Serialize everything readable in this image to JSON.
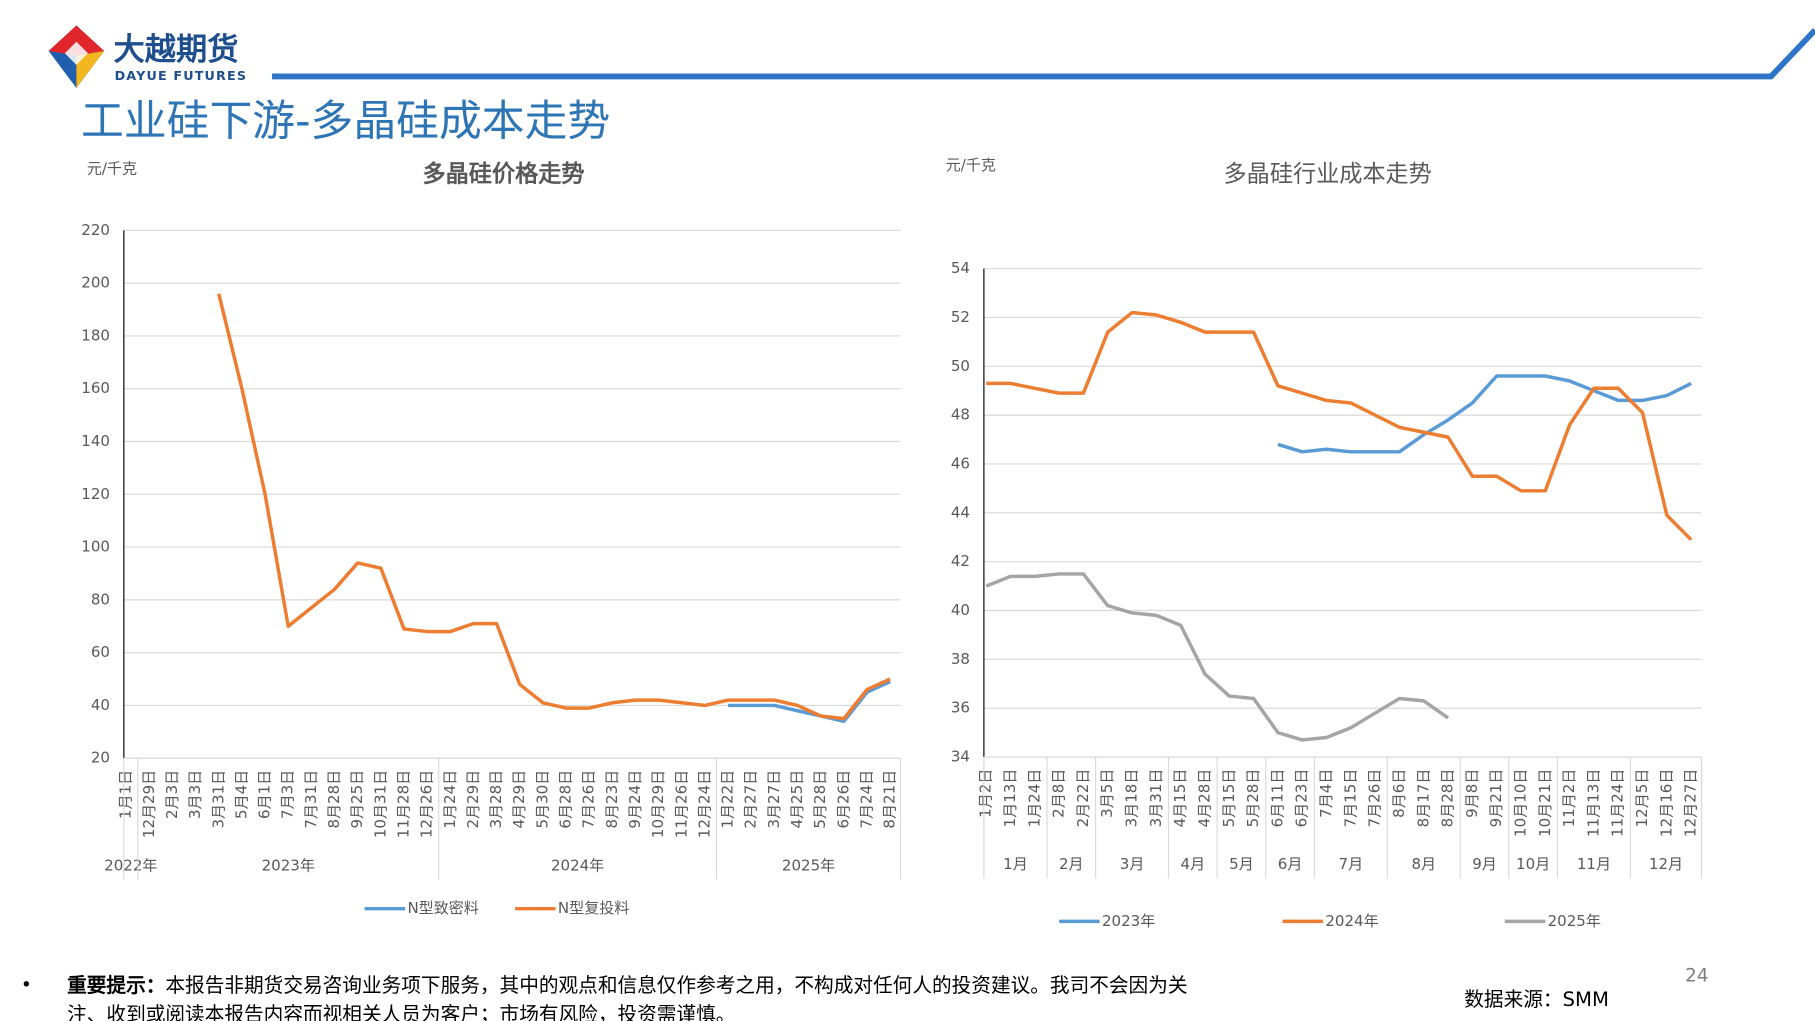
{
  "logo": {
    "name": "大越期货",
    "name_en": "DAYUE FUTURES"
  },
  "title": "工业硅下游-多晶硅成本走势",
  "chart_data": [
    {
      "type": "line",
      "title": "多晶硅价格走势",
      "y_unit": "元/千克",
      "categories": [
        "1月1日",
        "12月29日",
        "2月3日",
        "3月3日",
        "3月31日",
        "5月4日",
        "6月1日",
        "7月3日",
        "7月31日",
        "8月28日",
        "9月25日",
        "10月31日",
        "11月28日",
        "12月26日",
        "1月24日",
        "2月29日",
        "3月28日",
        "4月29日",
        "5月30日",
        "6月28日",
        "7月26日",
        "8月23日",
        "9月24日",
        "10月29日",
        "11月26日",
        "12月24日",
        "1月22日",
        "2月27日",
        "3月27日",
        "4月25日",
        "5月28日",
        "6月26日",
        "7月24日",
        "8月21日"
      ],
      "x_groups": [
        {
          "label": "2022年",
          "count": 1
        },
        {
          "label": "2023年",
          "count": 13
        },
        {
          "label": "2024年",
          "count": 12
        },
        {
          "label": "2025年",
          "count": 8
        }
      ],
      "series": [
        {
          "name": "N型致密料",
          "color": "#5b9bd5",
          "values": [
            null,
            null,
            null,
            null,
            null,
            null,
            null,
            null,
            null,
            null,
            null,
            null,
            null,
            null,
            null,
            null,
            null,
            null,
            null,
            null,
            null,
            null,
            null,
            null,
            null,
            null,
            40,
            40,
            40,
            38,
            36,
            34,
            45,
            49
          ]
        },
        {
          "name": "N型复投料",
          "color": "#ed7d31",
          "values": [
            null,
            null,
            null,
            null,
            196,
            160,
            120,
            70,
            77,
            84,
            94,
            92,
            69,
            68,
            68,
            71,
            71,
            48,
            41,
            39,
            39,
            41,
            42,
            42,
            41,
            40,
            42,
            42,
            42,
            40,
            36,
            35,
            46,
            50
          ]
        }
      ],
      "ylim": [
        20,
        220
      ],
      "yticks": [
        20,
        40,
        60,
        80,
        100,
        120,
        140,
        160,
        180,
        200,
        220
      ],
      "grid": true
    },
    {
      "type": "line",
      "title": "多晶硅行业成本走势",
      "y_unit": "元/千克",
      "categories": [
        "1月2日",
        "1月13日",
        "1月24日",
        "2月8日",
        "2月22日",
        "3月5日",
        "3月18日",
        "3月31日",
        "4月15日",
        "4月28日",
        "5月15日",
        "5月28日",
        "6月11日",
        "6月23日",
        "7月4日",
        "7月15日",
        "7月26日",
        "8月6日",
        "8月17日",
        "8月28日",
        "9月8日",
        "9月21日",
        "10月10日",
        "10月21日",
        "11月2日",
        "11月13日",
        "11月24日",
        "12月5日",
        "12月16日",
        "12月27日"
      ],
      "x_groups": [
        {
          "label": "1月",
          "count": 3
        },
        {
          "label": "2月",
          "count": 2
        },
        {
          "label": "3月",
          "count": 3
        },
        {
          "label": "4月",
          "count": 2
        },
        {
          "label": "5月",
          "count": 2
        },
        {
          "label": "6月",
          "count": 2
        },
        {
          "label": "7月",
          "count": 3
        },
        {
          "label": "8月",
          "count": 3
        },
        {
          "label": "9月",
          "count": 2
        },
        {
          "label": "10月",
          "count": 2
        },
        {
          "label": "11月",
          "count": 3
        },
        {
          "label": "12月",
          "count": 3
        }
      ],
      "series": [
        {
          "name": "2023年",
          "color": "#5b9bd5",
          "values": [
            null,
            null,
            null,
            null,
            null,
            null,
            null,
            null,
            null,
            null,
            null,
            null,
            46.8,
            46.5,
            46.6,
            46.5,
            46.5,
            46.5,
            47.2,
            47.8,
            48.5,
            49.6,
            49.6,
            49.6,
            49.4,
            49.0,
            48.6,
            48.6,
            48.8,
            49.3
          ]
        },
        {
          "name": "2024年",
          "color": "#ed7d31",
          "values": [
            49.3,
            49.3,
            49.1,
            48.9,
            48.9,
            51.4,
            52.2,
            52.1,
            51.8,
            51.4,
            51.4,
            51.4,
            49.2,
            48.9,
            48.6,
            48.5,
            48.0,
            47.5,
            47.3,
            47.1,
            45.5,
            45.5,
            44.9,
            44.9,
            47.6,
            49.1,
            49.1,
            48.1,
            43.9,
            42.9
          ]
        },
        {
          "name": "2025年",
          "color": "#a5a5a5",
          "values": [
            41.0,
            41.4,
            41.4,
            41.5,
            41.5,
            40.2,
            39.9,
            39.8,
            39.4,
            37.4,
            36.5,
            36.4,
            35.0,
            34.7,
            34.8,
            35.2,
            35.8,
            36.4,
            36.3,
            35.6,
            null,
            null,
            null,
            null,
            null,
            null,
            null,
            null,
            null,
            null
          ]
        }
      ],
      "ylim": [
        34,
        54
      ],
      "yticks": [
        34,
        36,
        38,
        40,
        42,
        44,
        46,
        48,
        50,
        52,
        54
      ],
      "grid": true
    }
  ],
  "disclaimer": {
    "label": "重要提示：",
    "lines": [
      "本报告非期货交易咨询业务项下服务，其中的观点和信息仅作参考之用，不构成对任何人的投资建议。我司不会因为关",
      "注、收到或阅读本报告内容而视相关人员为客户；市场有风险，投资需谨慎。"
    ]
  },
  "source": "数据来源：SMM",
  "page_number": 24
}
